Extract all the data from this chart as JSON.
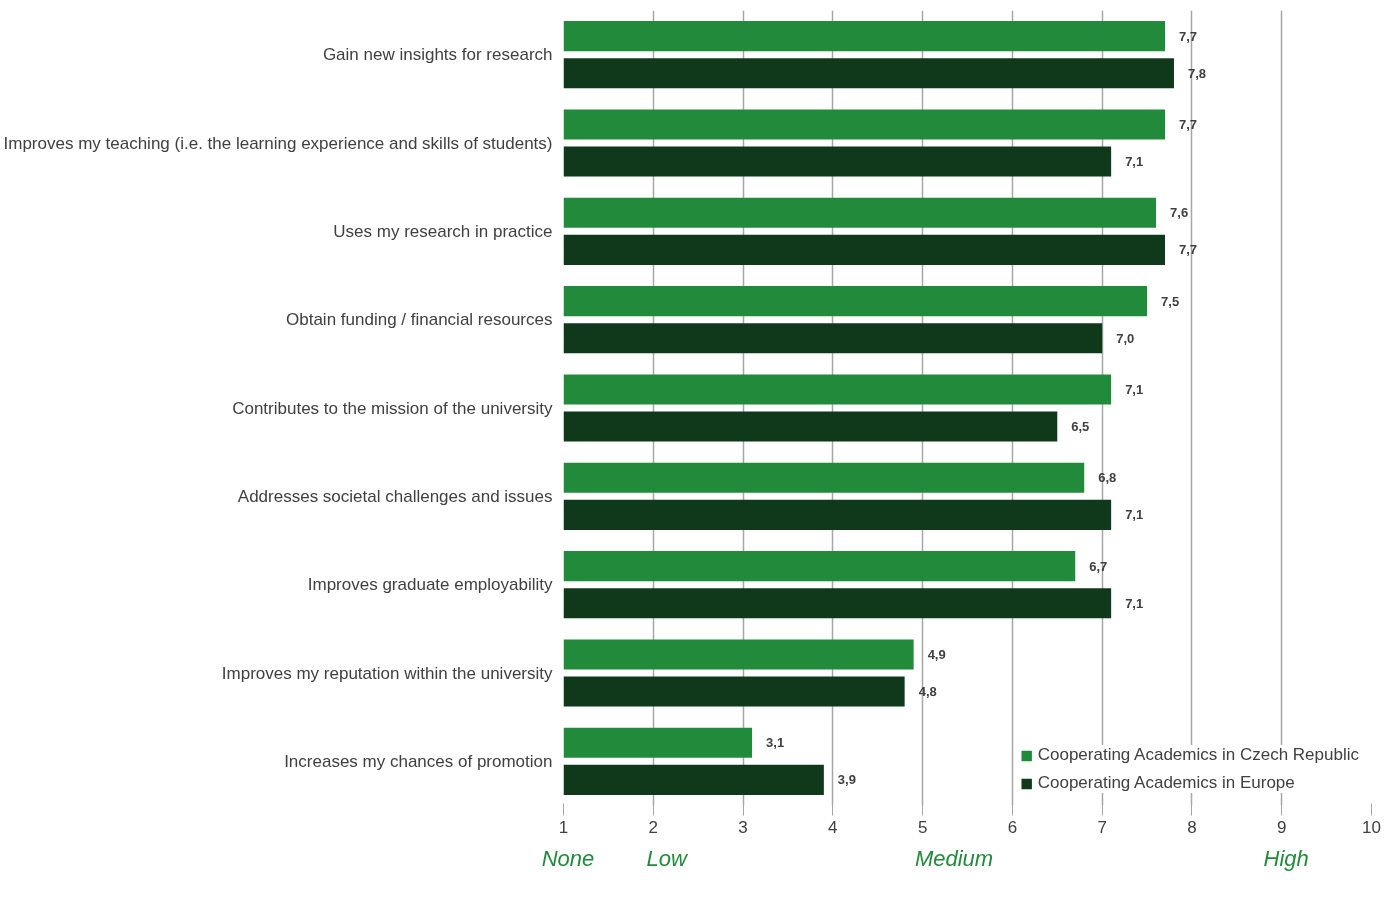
{
  "chart_data": {
    "type": "bar",
    "orientation": "horizontal",
    "categories": [
      "Gain new insights for research",
      "Improves my teaching (i.e. the learning experience and skills of students)",
      "Uses my research in practice",
      "Obtain funding / financial resources",
      "Contributes to the mission of the university",
      "Addresses societal challenges and issues",
      "Improves graduate employability",
      "Improves my reputation within the university",
      "Increases my chances of promotion"
    ],
    "series": [
      {
        "name": "Cooperating Academics in Czech Republic",
        "color": "#228b3b",
        "values": [
          7.7,
          7.7,
          7.6,
          7.5,
          7.1,
          6.8,
          6.7,
          4.9,
          3.1
        ],
        "value_labels": [
          "7,7",
          "7,7",
          "7,6",
          "7,5",
          "7,1",
          "6,8",
          "6,7",
          "4,9",
          "3,1"
        ]
      },
      {
        "name": "Cooperating Academics in Europe",
        "color": "#10391c",
        "values": [
          7.8,
          7.1,
          7.7,
          7.0,
          6.5,
          7.1,
          7.1,
          4.8,
          3.9
        ],
        "value_labels": [
          "7,8",
          "7,1",
          "7,7",
          "7,0",
          "6,5",
          "7,1",
          "7,1",
          "4,8",
          "3,9"
        ]
      }
    ],
    "xlim": [
      1,
      10
    ],
    "xticks": [
      1,
      2,
      3,
      4,
      5,
      6,
      7,
      8,
      9,
      10
    ],
    "grid": "x",
    "legend": "bottom right",
    "annotations": [
      "None",
      "Low",
      "Medium",
      "High"
    ]
  }
}
